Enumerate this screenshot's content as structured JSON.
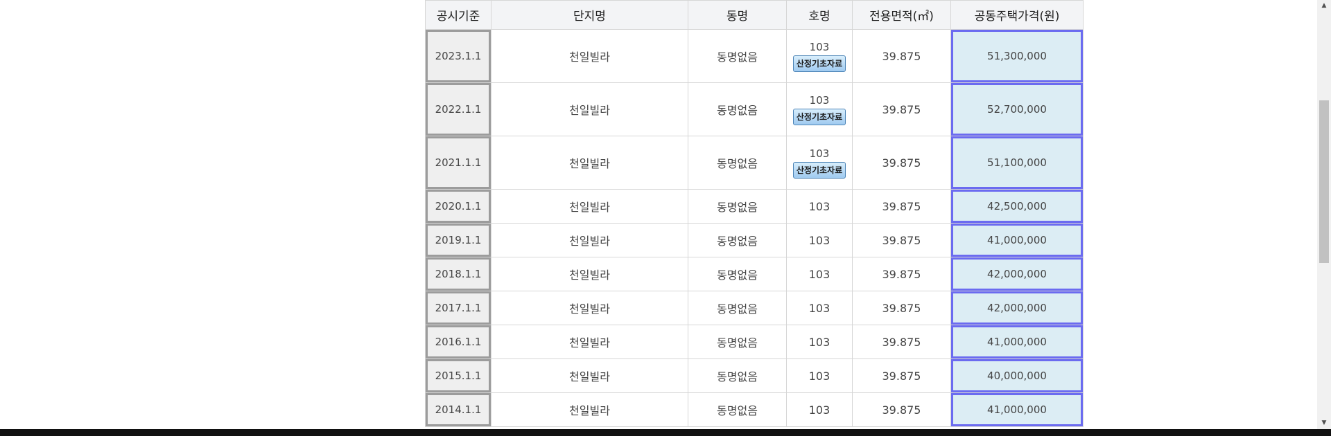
{
  "table": {
    "headers": [
      "공시기준",
      "단지명",
      "동명",
      "호명",
      "전용면적(㎡)",
      "공동주택가격(원)"
    ],
    "button_label": "산정기초자료",
    "rows": [
      {
        "date": "2023.1.1",
        "complex": "천일빌라",
        "dong": "동명없음",
        "ho": "103",
        "area": "39.875",
        "price": "51,300,000",
        "has_button": true
      },
      {
        "date": "2022.1.1",
        "complex": "천일빌라",
        "dong": "동명없음",
        "ho": "103",
        "area": "39.875",
        "price": "52,700,000",
        "has_button": true
      },
      {
        "date": "2021.1.1",
        "complex": "천일빌라",
        "dong": "동명없음",
        "ho": "103",
        "area": "39.875",
        "price": "51,100,000",
        "has_button": true
      },
      {
        "date": "2020.1.1",
        "complex": "천일빌라",
        "dong": "동명없음",
        "ho": "103",
        "area": "39.875",
        "price": "42,500,000",
        "has_button": false
      },
      {
        "date": "2019.1.1",
        "complex": "천일빌라",
        "dong": "동명없음",
        "ho": "103",
        "area": "39.875",
        "price": "41,000,000",
        "has_button": false
      },
      {
        "date": "2018.1.1",
        "complex": "천일빌라",
        "dong": "동명없음",
        "ho": "103",
        "area": "39.875",
        "price": "42,000,000",
        "has_button": false
      },
      {
        "date": "2017.1.1",
        "complex": "천일빌라",
        "dong": "동명없음",
        "ho": "103",
        "area": "39.875",
        "price": "42,000,000",
        "has_button": false
      },
      {
        "date": "2016.1.1",
        "complex": "천일빌라",
        "dong": "동명없음",
        "ho": "103",
        "area": "39.875",
        "price": "41,000,000",
        "has_button": false
      },
      {
        "date": "2015.1.1",
        "complex": "천일빌라",
        "dong": "동명없음",
        "ho": "103",
        "area": "39.875",
        "price": "40,000,000",
        "has_button": false
      },
      {
        "date": "2014.1.1",
        "complex": "천일빌라",
        "dong": "동명없음",
        "ho": "103",
        "area": "39.875",
        "price": "41,000,000",
        "has_button": false
      }
    ]
  },
  "scrollbar": {
    "up_icon": "triangle-up-icon",
    "down_icon": "triangle-down-icon"
  },
  "colors": {
    "header_bg": "#f3f4f6",
    "price_bg": "#dcedf4",
    "price_border": "#6b6bf0",
    "date_bg": "#efefef",
    "date_border": "#9c9c9c"
  }
}
